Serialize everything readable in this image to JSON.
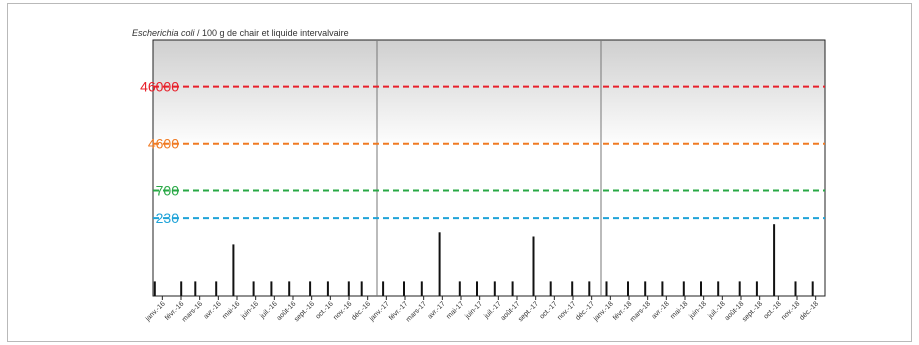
{
  "chart_data": {
    "type": "bar",
    "title_species": "Escherichia coli",
    "title_rest": " / 100 g de chair et liquide intervalvaire",
    "log_scale": true,
    "ylim": [
      10,
      300000
    ],
    "grid": false,
    "thresholds": [
      {
        "label": "46000",
        "value": 46000,
        "color": "#e8202a"
      },
      {
        "label": "4600",
        "value": 4600,
        "color": "#f07a22"
      },
      {
        "label": "700",
        "value": 700,
        "color": "#28a845"
      },
      {
        "label": "230",
        "value": 230,
        "color": "#1fa3d8"
      }
    ],
    "year_separators_after": [
      "déc.-16",
      "déc.-17"
    ],
    "categories": [
      "janv.-16",
      "févr.-16",
      "mars-16",
      "avr.-16",
      "mai-16",
      "juin-16",
      "juil.-16",
      "août-16",
      "sept.-16",
      "oct.-16",
      "nov.-16",
      "déc.-16",
      "janv.-17",
      "févr.-17",
      "mars-17",
      "avr.-17",
      "mai-17",
      "juin-17",
      "juil.-17",
      "août-17",
      "sept.-17",
      "oct.-17",
      "nov.-17",
      "déc.-17",
      "janv.-18",
      "févr.-18",
      "mars-18",
      "avr.-18",
      "mai-18",
      "juin-18",
      "juil.-18",
      "août-18",
      "sept.-18",
      "oct.-18",
      "nov.-18",
      "déc.-18"
    ],
    "x": [
      "2016-01-04",
      "2016-02-16",
      "2016-03-10",
      "2016-04-13",
      "2016-05-11",
      "2016-06-13",
      "2016-07-12",
      "2016-08-10",
      "2016-09-13",
      "2016-10-12",
      "2016-11-15",
      "2016-12-06",
      "2017-01-10",
      "2017-02-13",
      "2017-03-14",
      "2017-04-12",
      "2017-05-15",
      "2017-06-12",
      "2017-07-11",
      "2017-08-09",
      "2017-09-12",
      "2017-10-10",
      "2017-11-14",
      "2017-12-12",
      "2018-01-09",
      "2018-02-13",
      "2018-03-13",
      "2018-04-10",
      "2018-05-15",
      "2018-06-12",
      "2018-07-10",
      "2018-08-14",
      "2018-09-11",
      "2018-10-09",
      "2018-11-13",
      "2018-12-11"
    ],
    "values": [
      18,
      18,
      18,
      18,
      80,
      18,
      18,
      18,
      18,
      18,
      18,
      18,
      18,
      18,
      18,
      130,
      18,
      18,
      18,
      18,
      110,
      18,
      18,
      18,
      18,
      18,
      18,
      18,
      18,
      18,
      18,
      18,
      18,
      180,
      18,
      18
    ]
  }
}
